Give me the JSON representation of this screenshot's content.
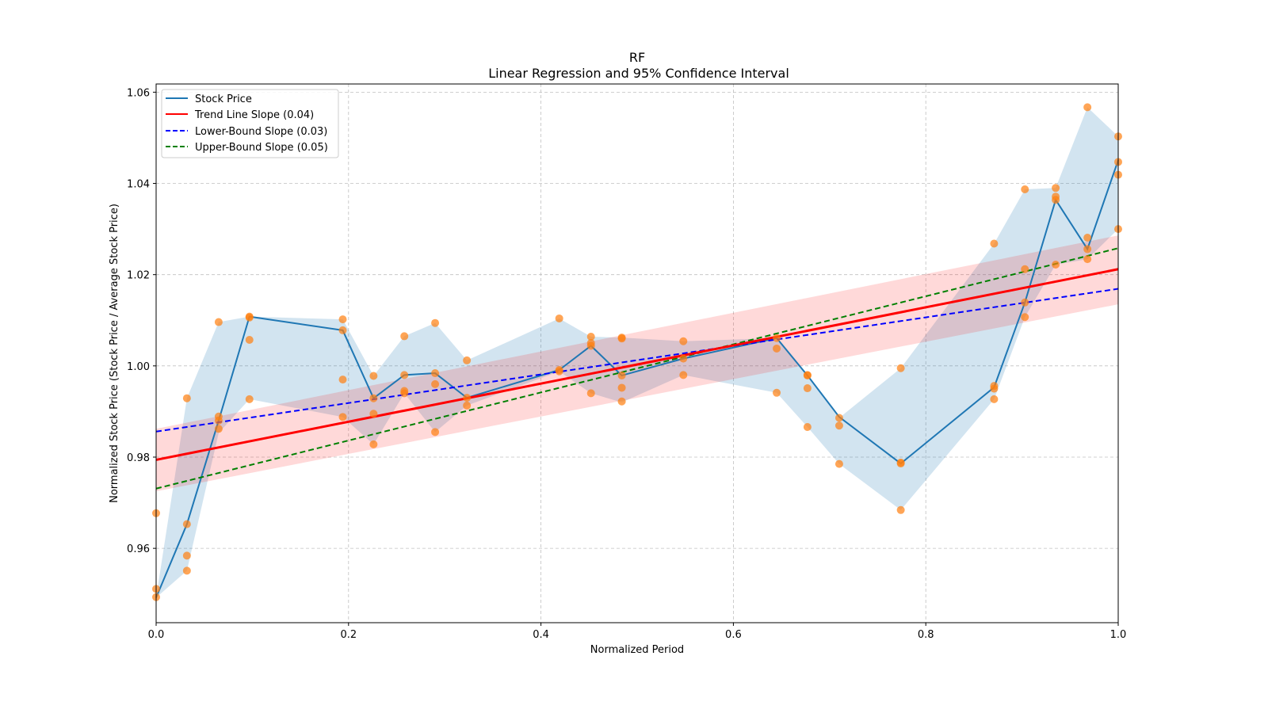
{
  "chart_data": {
    "type": "line",
    "title": "RF",
    "subtitle": "Linear Regression and 95% Confidence Interval",
    "xlabel": "Normalized Period",
    "ylabel": "Normalized Stock Price (Stock Price / Average Stock Price)",
    "xlim": [
      0.0,
      1.0
    ],
    "ylim": [
      0.9437,
      1.0618
    ],
    "xticks": [
      0.0,
      0.2,
      0.4,
      0.6,
      0.8,
      1.0
    ],
    "xtick_labels": [
      "0.0",
      "0.2",
      "0.4",
      "0.6",
      "0.8",
      "1.0"
    ],
    "yticks": [
      0.96,
      0.98,
      1.0,
      1.02,
      1.04,
      1.06
    ],
    "ytick_labels": [
      "0.96",
      "0.98",
      "1.00",
      "1.02",
      "1.04",
      "1.06"
    ],
    "grid": true,
    "legend_position": "top-left",
    "legend": [
      {
        "label": "Stock Price",
        "color": "#1f77b4",
        "style": "solid"
      },
      {
        "label": "Trend Line Slope (0.04)",
        "color": "#ff0000",
        "style": "solid"
      },
      {
        "label": "Lower-Bound Slope (0.03)",
        "color": "#0000ff",
        "style": "dashed"
      },
      {
        "label": "Upper-Bound Slope (0.05)",
        "color": "#008000",
        "style": "dashed"
      }
    ],
    "stock_price": {
      "x": [
        0.0,
        0.032,
        0.065,
        0.097,
        0.194,
        0.226,
        0.258,
        0.29,
        0.323,
        0.419,
        0.452,
        0.484,
        0.548,
        0.645,
        0.677,
        0.71,
        0.774,
        0.871,
        0.903,
        0.935,
        0.968,
        1.0
      ],
      "y": [
        0.9492,
        0.9653,
        0.988,
        1.0108,
        1.0078,
        0.9929,
        0.998,
        0.9984,
        0.993,
        0.9991,
        1.0044,
        0.9979,
        1.0016,
        1.0061,
        0.9979,
        0.9888,
        0.9786,
        0.9953,
        1.0139,
        1.0364,
        1.0256,
        1.0451
      ],
      "band_low": [
        0.9492,
        0.9551,
        0.9853,
        0.9927,
        0.9888,
        0.9828,
        0.994,
        0.9855,
        0.9913,
        0.9988,
        0.994,
        0.992,
        0.998,
        0.9941,
        0.9866,
        0.9785,
        0.9684,
        0.9927,
        1.0107,
        1.0222,
        1.0234,
        1.03
      ],
      "band_high": [
        0.9492,
        0.9929,
        1.0096,
        1.0108,
        1.0102,
        0.9978,
        1.0065,
        1.0094,
        1.0012,
        1.0104,
        1.0064,
        1.0062,
        1.0054,
        1.0061,
        0.998,
        0.9886,
        0.9995,
        1.0268,
        1.0387,
        1.039,
        1.0567,
        1.0503
      ]
    },
    "scatter": {
      "color": "#ff7f0e",
      "points": [
        [
          0.0,
          0.9677
        ],
        [
          0.0,
          0.9511
        ],
        [
          0.0,
          0.9493
        ],
        [
          0.032,
          0.9929
        ],
        [
          0.032,
          0.9653
        ],
        [
          0.032,
          0.9584
        ],
        [
          0.032,
          0.9551
        ],
        [
          0.065,
          1.0096
        ],
        [
          0.065,
          0.9889
        ],
        [
          0.065,
          0.988
        ],
        [
          0.065,
          0.9862
        ],
        [
          0.097,
          1.0108
        ],
        [
          0.097,
          1.0106
        ],
        [
          0.097,
          1.0057
        ],
        [
          0.097,
          0.9927
        ],
        [
          0.194,
          1.0102
        ],
        [
          0.194,
          1.0078
        ],
        [
          0.194,
          0.997
        ],
        [
          0.194,
          0.9888
        ],
        [
          0.226,
          0.9978
        ],
        [
          0.226,
          0.9929
        ],
        [
          0.226,
          0.9895
        ],
        [
          0.226,
          0.9828
        ],
        [
          0.258,
          1.0065
        ],
        [
          0.258,
          0.998
        ],
        [
          0.258,
          0.9945
        ],
        [
          0.258,
          0.994
        ],
        [
          0.29,
          1.0094
        ],
        [
          0.29,
          0.9984
        ],
        [
          0.29,
          0.996
        ],
        [
          0.29,
          0.9855
        ],
        [
          0.323,
          1.0012
        ],
        [
          0.323,
          0.993
        ],
        [
          0.323,
          0.9913
        ],
        [
          0.419,
          1.0104
        ],
        [
          0.419,
          0.9991
        ],
        [
          0.419,
          0.9988
        ],
        [
          0.452,
          1.0064
        ],
        [
          0.452,
          1.005
        ],
        [
          0.452,
          1.0044
        ],
        [
          0.452,
          0.994
        ],
        [
          0.484,
          1.0062
        ],
        [
          0.484,
          1.006
        ],
        [
          0.484,
          0.9979
        ],
        [
          0.484,
          0.9952
        ],
        [
          0.484,
          0.9922
        ],
        [
          0.548,
          1.0054
        ],
        [
          0.548,
          1.0016
        ],
        [
          0.548,
          0.998
        ],
        [
          0.645,
          1.0061
        ],
        [
          0.645,
          1.0038
        ],
        [
          0.645,
          0.9941
        ],
        [
          0.677,
          0.998
        ],
        [
          0.677,
          0.9979
        ],
        [
          0.677,
          0.9951
        ],
        [
          0.677,
          0.9866
        ],
        [
          0.71,
          0.9886
        ],
        [
          0.71,
          0.9869
        ],
        [
          0.71,
          0.9785
        ],
        [
          0.774,
          0.9995
        ],
        [
          0.774,
          0.9788
        ],
        [
          0.774,
          0.9786
        ],
        [
          0.774,
          0.9684
        ],
        [
          0.871,
          1.0268
        ],
        [
          0.871,
          0.9956
        ],
        [
          0.871,
          0.995
        ],
        [
          0.871,
          0.9927
        ],
        [
          0.903,
          1.0387
        ],
        [
          0.903,
          1.0212
        ],
        [
          0.903,
          1.0139
        ],
        [
          0.903,
          1.0107
        ],
        [
          0.935,
          1.039
        ],
        [
          0.935,
          1.0371
        ],
        [
          0.935,
          1.0364
        ],
        [
          0.935,
          1.0222
        ],
        [
          0.968,
          1.0567
        ],
        [
          0.968,
          1.0281
        ],
        [
          0.968,
          1.0256
        ],
        [
          0.968,
          1.0234
        ],
        [
          1.0,
          1.0503
        ],
        [
          1.0,
          1.0447
        ],
        [
          1.0,
          1.0419
        ],
        [
          1.0,
          1.03
        ]
      ]
    },
    "trend_line": {
      "slope": 0.0418,
      "intercept": 0.9794,
      "color": "#ff0000",
      "ci_low_start": 0.9725,
      "ci_high_start": 0.9862,
      "ci_low_end": 1.0135,
      "ci_high_end": 1.0286
    },
    "lower_bound_line": {
      "slope": 0.0313,
      "intercept": 0.9856,
      "color": "#0000ff"
    },
    "upper_bound_line": {
      "slope": 0.0527,
      "intercept": 0.9731,
      "color": "#008000"
    }
  }
}
